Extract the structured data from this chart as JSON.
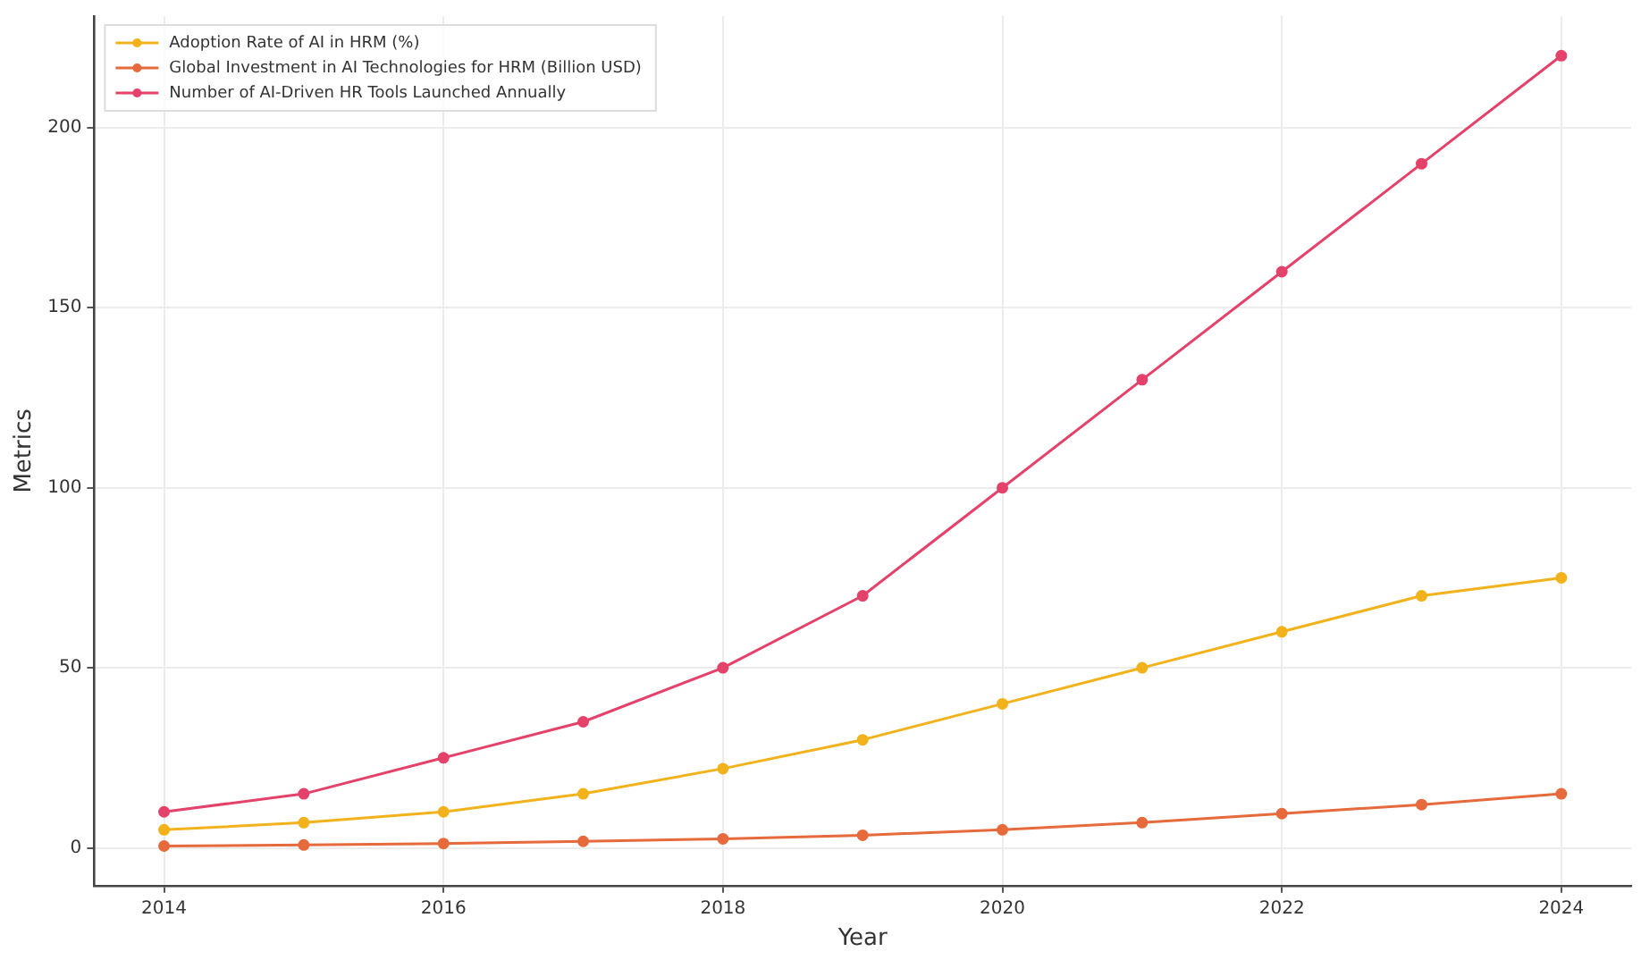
{
  "chart_data": {
    "type": "line",
    "xlabel": "Year",
    "ylabel": "Metrics",
    "x": [
      2014,
      2015,
      2016,
      2017,
      2018,
      2019,
      2020,
      2021,
      2022,
      2023,
      2024
    ],
    "series": [
      {
        "name": "Adoption Rate of AI in HRM (%)",
        "color": "#f2b21b",
        "values": [
          5,
          7,
          10,
          15,
          22,
          30,
          40,
          50,
          60,
          70,
          75
        ]
      },
      {
        "name": "Global Investment in AI Technologies for HRM (Billion USD)",
        "color": "#e66a3c",
        "values": [
          0.5,
          0.8,
          1.2,
          1.8,
          2.5,
          3.5,
          5,
          7,
          9.5,
          12,
          15
        ]
      },
      {
        "name": "Number of AI-Driven HR Tools Launched Annually",
        "color": "#e4426a",
        "values": [
          10,
          15,
          25,
          35,
          50,
          70,
          100,
          130,
          160,
          190,
          220
        ]
      }
    ],
    "xlim": [
      2013.5,
      2024.5
    ],
    "xticks": [
      2014,
      2016,
      2018,
      2020,
      2022,
      2024
    ],
    "ylim": [
      -10.5,
      231
    ],
    "yticks": [
      0,
      50,
      100,
      150,
      200
    ],
    "grid": true,
    "legend": "top left",
    "marker": "circle",
    "line_style": "solid"
  }
}
